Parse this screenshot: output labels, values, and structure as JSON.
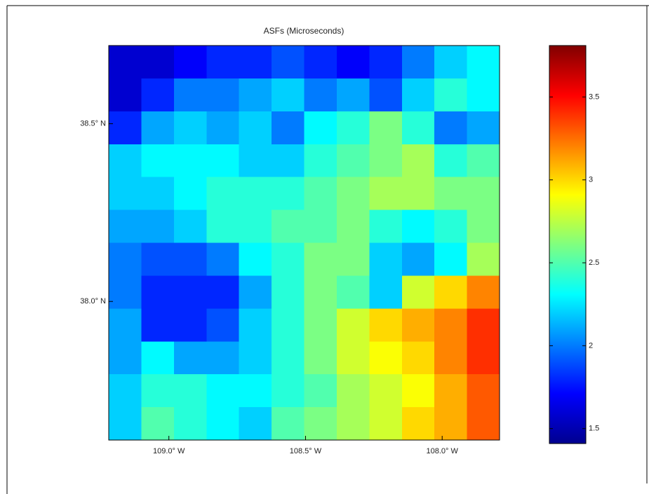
{
  "chart_data": {
    "type": "heatmap",
    "title": "ASFs (Microseconds)",
    "colormap": "jet",
    "xlim": [
      -109.22,
      -107.79
    ],
    "ylim": [
      37.61,
      38.72
    ],
    "xticks": [
      {
        "value": -109.0,
        "label": "109.0° W"
      },
      {
        "value": -108.5,
        "label": "108.5° W"
      },
      {
        "value": -108.0,
        "label": "108.0° W"
      }
    ],
    "yticks": [
      {
        "value": 38.5,
        "label": "38.5° N"
      },
      {
        "value": 38.0,
        "label": "38.0° N"
      }
    ],
    "clim": [
      1.41,
      3.81
    ],
    "cticks": [
      1.5,
      2,
      2.5,
      3,
      3.5
    ],
    "z": [
      [
        1.6,
        1.6,
        1.7,
        1.8,
        1.8,
        1.9,
        1.8,
        1.7,
        1.8,
        2.0,
        2.2,
        2.3
      ],
      [
        1.6,
        1.8,
        2.0,
        2.0,
        2.1,
        2.2,
        2.0,
        2.1,
        1.9,
        2.2,
        2.4,
        2.3
      ],
      [
        1.8,
        2.1,
        2.2,
        2.1,
        2.2,
        2.0,
        2.3,
        2.4,
        2.6,
        2.4,
        2.0,
        2.1
      ],
      [
        2.2,
        2.3,
        2.3,
        2.3,
        2.2,
        2.2,
        2.4,
        2.5,
        2.6,
        2.7,
        2.4,
        2.5
      ],
      [
        2.2,
        2.2,
        2.3,
        2.4,
        2.4,
        2.4,
        2.5,
        2.6,
        2.7,
        2.7,
        2.6,
        2.6
      ],
      [
        2.1,
        2.1,
        2.2,
        2.4,
        2.4,
        2.5,
        2.5,
        2.6,
        2.4,
        2.3,
        2.4,
        2.6
      ],
      [
        2.0,
        1.9,
        1.9,
        2.0,
        2.3,
        2.4,
        2.6,
        2.6,
        2.2,
        2.1,
        2.3,
        2.7
      ],
      [
        2.0,
        1.8,
        1.8,
        1.8,
        2.1,
        2.4,
        2.6,
        2.5,
        2.2,
        2.8,
        3.0,
        3.2
      ],
      [
        2.1,
        1.8,
        1.8,
        1.9,
        2.2,
        2.4,
        2.6,
        2.8,
        3.0,
        3.1,
        3.2,
        3.4
      ],
      [
        2.1,
        2.3,
        2.1,
        2.1,
        2.2,
        2.4,
        2.6,
        2.8,
        2.9,
        3.0,
        3.2,
        3.4
      ],
      [
        2.2,
        2.4,
        2.4,
        2.3,
        2.3,
        2.4,
        2.5,
        2.7,
        2.8,
        2.9,
        3.1,
        3.3
      ],
      [
        2.2,
        2.5,
        2.4,
        2.3,
        2.2,
        2.5,
        2.6,
        2.7,
        2.8,
        3.0,
        3.1,
        3.3
      ]
    ]
  }
}
